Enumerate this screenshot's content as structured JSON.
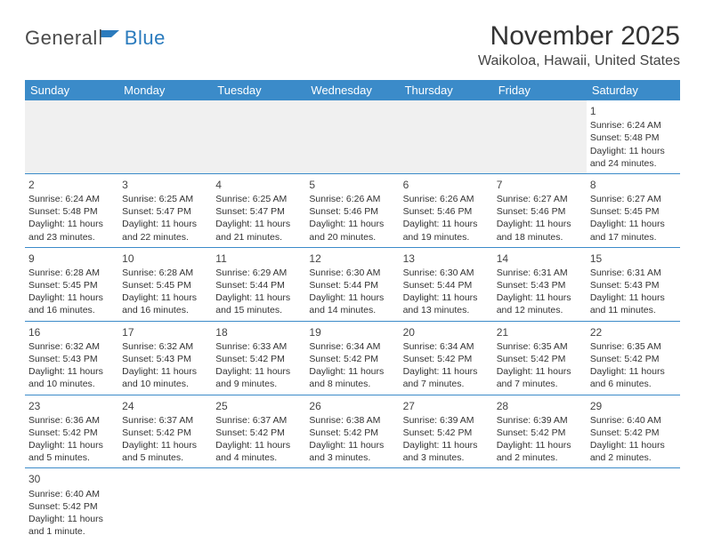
{
  "logo": {
    "text1": "General",
    "text2": "Blue"
  },
  "header": {
    "month_title": "November 2025",
    "location": "Waikoloa, Hawaii, United States"
  },
  "colors": {
    "header_bg": "#3b8bc9",
    "header_fg": "#ffffff",
    "blank_bg": "#f0f0f0",
    "row_border": "#3b8bc9",
    "text": "#333333",
    "logo_gray": "#4a4a4a",
    "logo_blue": "#2b7bbd"
  },
  "weekdays": [
    "Sunday",
    "Monday",
    "Tuesday",
    "Wednesday",
    "Thursday",
    "Friday",
    "Saturday"
  ],
  "weeks": [
    [
      {
        "blank": true
      },
      {
        "blank": true
      },
      {
        "blank": true
      },
      {
        "blank": true
      },
      {
        "blank": true
      },
      {
        "blank": true
      },
      {
        "day": "1",
        "sunrise": "Sunrise: 6:24 AM",
        "sunset": "Sunset: 5:48 PM",
        "daylight": "Daylight: 11 hours and 24 minutes."
      }
    ],
    [
      {
        "day": "2",
        "sunrise": "Sunrise: 6:24 AM",
        "sunset": "Sunset: 5:48 PM",
        "daylight": "Daylight: 11 hours and 23 minutes."
      },
      {
        "day": "3",
        "sunrise": "Sunrise: 6:25 AM",
        "sunset": "Sunset: 5:47 PM",
        "daylight": "Daylight: 11 hours and 22 minutes."
      },
      {
        "day": "4",
        "sunrise": "Sunrise: 6:25 AM",
        "sunset": "Sunset: 5:47 PM",
        "daylight": "Daylight: 11 hours and 21 minutes."
      },
      {
        "day": "5",
        "sunrise": "Sunrise: 6:26 AM",
        "sunset": "Sunset: 5:46 PM",
        "daylight": "Daylight: 11 hours and 20 minutes."
      },
      {
        "day": "6",
        "sunrise": "Sunrise: 6:26 AM",
        "sunset": "Sunset: 5:46 PM",
        "daylight": "Daylight: 11 hours and 19 minutes."
      },
      {
        "day": "7",
        "sunrise": "Sunrise: 6:27 AM",
        "sunset": "Sunset: 5:46 PM",
        "daylight": "Daylight: 11 hours and 18 minutes."
      },
      {
        "day": "8",
        "sunrise": "Sunrise: 6:27 AM",
        "sunset": "Sunset: 5:45 PM",
        "daylight": "Daylight: 11 hours and 17 minutes."
      }
    ],
    [
      {
        "day": "9",
        "sunrise": "Sunrise: 6:28 AM",
        "sunset": "Sunset: 5:45 PM",
        "daylight": "Daylight: 11 hours and 16 minutes."
      },
      {
        "day": "10",
        "sunrise": "Sunrise: 6:28 AM",
        "sunset": "Sunset: 5:45 PM",
        "daylight": "Daylight: 11 hours and 16 minutes."
      },
      {
        "day": "11",
        "sunrise": "Sunrise: 6:29 AM",
        "sunset": "Sunset: 5:44 PM",
        "daylight": "Daylight: 11 hours and 15 minutes."
      },
      {
        "day": "12",
        "sunrise": "Sunrise: 6:30 AM",
        "sunset": "Sunset: 5:44 PM",
        "daylight": "Daylight: 11 hours and 14 minutes."
      },
      {
        "day": "13",
        "sunrise": "Sunrise: 6:30 AM",
        "sunset": "Sunset: 5:44 PM",
        "daylight": "Daylight: 11 hours and 13 minutes."
      },
      {
        "day": "14",
        "sunrise": "Sunrise: 6:31 AM",
        "sunset": "Sunset: 5:43 PM",
        "daylight": "Daylight: 11 hours and 12 minutes."
      },
      {
        "day": "15",
        "sunrise": "Sunrise: 6:31 AM",
        "sunset": "Sunset: 5:43 PM",
        "daylight": "Daylight: 11 hours and 11 minutes."
      }
    ],
    [
      {
        "day": "16",
        "sunrise": "Sunrise: 6:32 AM",
        "sunset": "Sunset: 5:43 PM",
        "daylight": "Daylight: 11 hours and 10 minutes."
      },
      {
        "day": "17",
        "sunrise": "Sunrise: 6:32 AM",
        "sunset": "Sunset: 5:43 PM",
        "daylight": "Daylight: 11 hours and 10 minutes."
      },
      {
        "day": "18",
        "sunrise": "Sunrise: 6:33 AM",
        "sunset": "Sunset: 5:42 PM",
        "daylight": "Daylight: 11 hours and 9 minutes."
      },
      {
        "day": "19",
        "sunrise": "Sunrise: 6:34 AM",
        "sunset": "Sunset: 5:42 PM",
        "daylight": "Daylight: 11 hours and 8 minutes."
      },
      {
        "day": "20",
        "sunrise": "Sunrise: 6:34 AM",
        "sunset": "Sunset: 5:42 PM",
        "daylight": "Daylight: 11 hours and 7 minutes."
      },
      {
        "day": "21",
        "sunrise": "Sunrise: 6:35 AM",
        "sunset": "Sunset: 5:42 PM",
        "daylight": "Daylight: 11 hours and 7 minutes."
      },
      {
        "day": "22",
        "sunrise": "Sunrise: 6:35 AM",
        "sunset": "Sunset: 5:42 PM",
        "daylight": "Daylight: 11 hours and 6 minutes."
      }
    ],
    [
      {
        "day": "23",
        "sunrise": "Sunrise: 6:36 AM",
        "sunset": "Sunset: 5:42 PM",
        "daylight": "Daylight: 11 hours and 5 minutes."
      },
      {
        "day": "24",
        "sunrise": "Sunrise: 6:37 AM",
        "sunset": "Sunset: 5:42 PM",
        "daylight": "Daylight: 11 hours and 5 minutes."
      },
      {
        "day": "25",
        "sunrise": "Sunrise: 6:37 AM",
        "sunset": "Sunset: 5:42 PM",
        "daylight": "Daylight: 11 hours and 4 minutes."
      },
      {
        "day": "26",
        "sunrise": "Sunrise: 6:38 AM",
        "sunset": "Sunset: 5:42 PM",
        "daylight": "Daylight: 11 hours and 3 minutes."
      },
      {
        "day": "27",
        "sunrise": "Sunrise: 6:39 AM",
        "sunset": "Sunset: 5:42 PM",
        "daylight": "Daylight: 11 hours and 3 minutes."
      },
      {
        "day": "28",
        "sunrise": "Sunrise: 6:39 AM",
        "sunset": "Sunset: 5:42 PM",
        "daylight": "Daylight: 11 hours and 2 minutes."
      },
      {
        "day": "29",
        "sunrise": "Sunrise: 6:40 AM",
        "sunset": "Sunset: 5:42 PM",
        "daylight": "Daylight: 11 hours and 2 minutes."
      }
    ],
    [
      {
        "day": "30",
        "sunrise": "Sunrise: 6:40 AM",
        "sunset": "Sunset: 5:42 PM",
        "daylight": "Daylight: 11 hours and 1 minute."
      },
      {
        "blank": true
      },
      {
        "blank": true
      },
      {
        "blank": true
      },
      {
        "blank": true
      },
      {
        "blank": true
      },
      {
        "blank": true
      }
    ]
  ]
}
